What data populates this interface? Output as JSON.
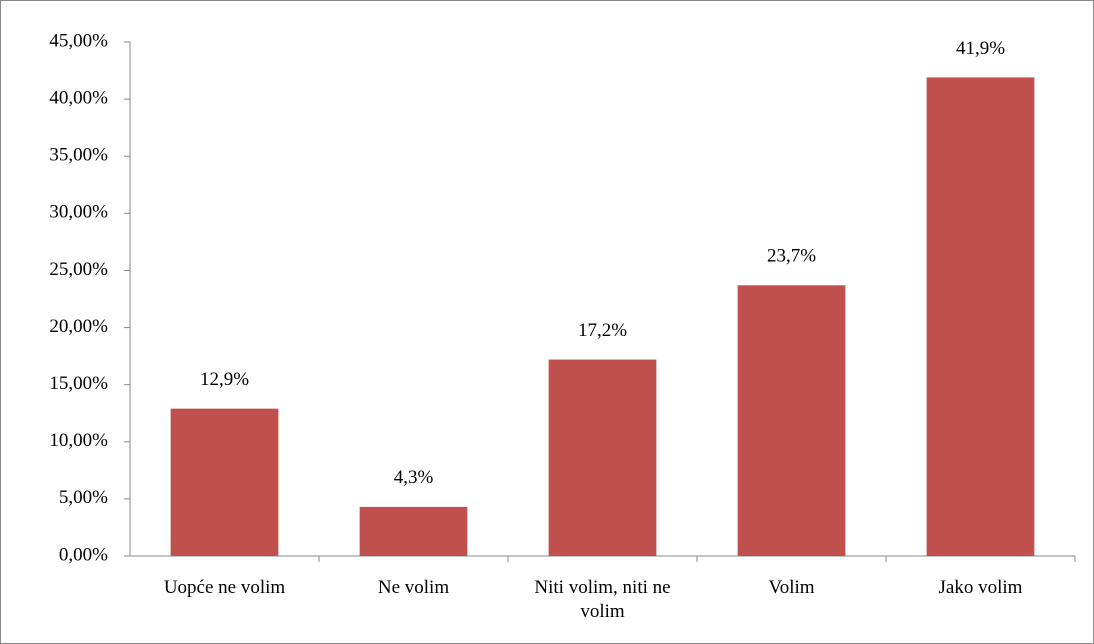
{
  "chart_data": {
    "type": "bar",
    "categories": [
      "Uopće ne volim",
      "Ne volim",
      "Niti volim, niti ne volim",
      "Volim",
      "Jako volim"
    ],
    "values": [
      12.9,
      4.3,
      17.2,
      23.7,
      41.9
    ],
    "value_labels": [
      "12,9%",
      "4,3%",
      "17,2%",
      "23,7%",
      "41,9%"
    ],
    "color": "#c0504d",
    "ylim": [
      0,
      45
    ],
    "yticks": [
      {
        "value": 0,
        "label": "0,00%"
      },
      {
        "value": 5,
        "label": "5,00%"
      },
      {
        "value": 10,
        "label": "10,00%"
      },
      {
        "value": 15,
        "label": "15,00%"
      },
      {
        "value": 20,
        "label": "20,00%"
      },
      {
        "value": 25,
        "label": "25,00%"
      },
      {
        "value": 30,
        "label": "30,00%"
      },
      {
        "value": 35,
        "label": "35,00%"
      },
      {
        "value": 40,
        "label": "40,00%"
      },
      {
        "value": 45,
        "label": "45,00%"
      }
    ],
    "grid": false
  }
}
